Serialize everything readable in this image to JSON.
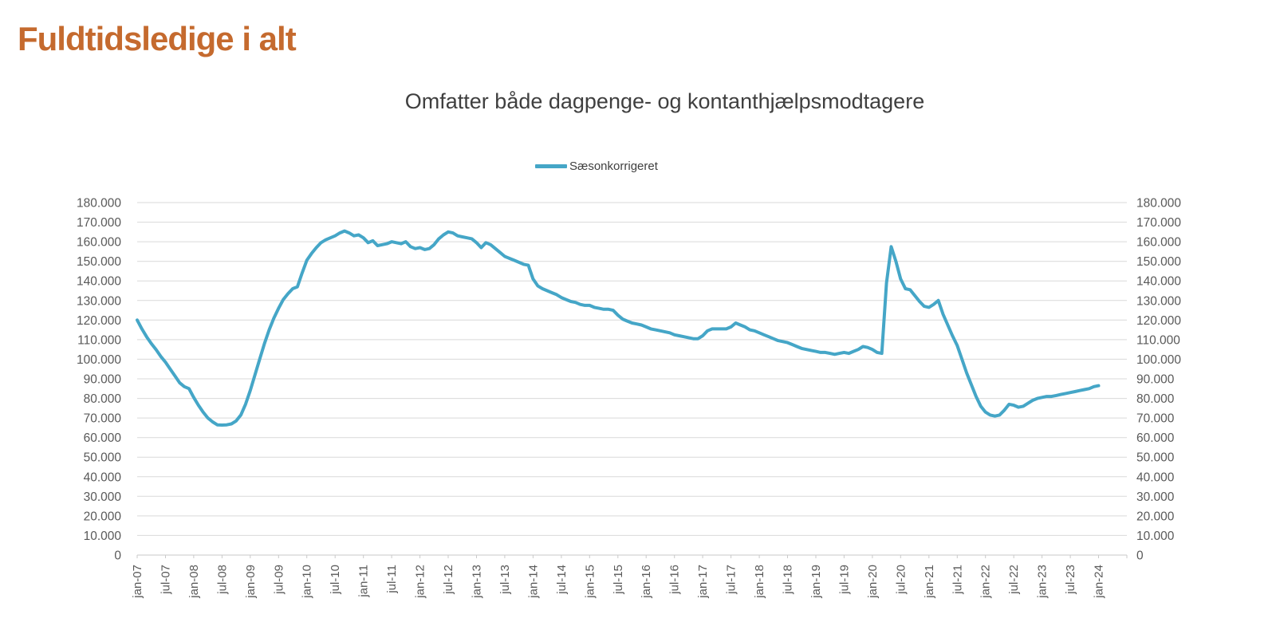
{
  "header": {
    "title": "Fuldtidsledige i alt"
  },
  "chart": {
    "title": "Omfatter både dagpenge- og kontanthjælpsmodtagere",
    "legend": {
      "label": "Sæsonkorrigeret"
    }
  },
  "colors": {
    "accent_orange": "#c56a2e",
    "line_teal": "#45a6c7",
    "gridline": "#d9d9d9",
    "axis_line": "#c9c9c9",
    "axis_text": "#595959",
    "title_text": "#3f3f3f"
  },
  "chart_data": {
    "type": "line",
    "title": "Omfatter både dagpenge- og kontanthjælpsmodtagere",
    "series_name": "Sæsonkorrigeret",
    "legend_position": "top-center",
    "grid": "horizontal",
    "ylim": [
      0,
      180000
    ],
    "ytick_step": 10000,
    "y_tick_labels": [
      "0",
      "10.000",
      "20.000",
      "30.000",
      "40.000",
      "50.000",
      "60.000",
      "70.000",
      "80.000",
      "90.000",
      "100.000",
      "110.000",
      "120.000",
      "130.000",
      "140.000",
      "150.000",
      "160.000",
      "170.000",
      "180.000"
    ],
    "x_start": "jan-07",
    "x_end": "jan-24",
    "months_per_tick": 6,
    "x_axis_total_months": 210,
    "x_tick_labels": [
      "jan-07",
      "jul-07",
      "jan-08",
      "jul-08",
      "jan-09",
      "jul-09",
      "jan-10",
      "jul-10",
      "jan-11",
      "jul-11",
      "jan-12",
      "jul-12",
      "jan-13",
      "jul-13",
      "jan-14",
      "jul-14",
      "jan-15",
      "jul-15",
      "jan-16",
      "jul-16",
      "jan-17",
      "jul-17",
      "jan-18",
      "jul-18",
      "jan-19",
      "jul-19",
      "jan-20",
      "jul-20",
      "jan-21",
      "jul-21",
      "jan-22",
      "jul-22",
      "jan-23",
      "jul-23",
      "jan-24"
    ],
    "values": [
      120000,
      115500,
      111500,
      108000,
      105000,
      101500,
      98500,
      95000,
      91500,
      88000,
      86000,
      85000,
      80500,
      76500,
      73000,
      70000,
      68000,
      66500,
      66400,
      66500,
      67000,
      68500,
      71500,
      77000,
      84000,
      92000,
      100000,
      108000,
      115000,
      121000,
      126000,
      130500,
      133500,
      136000,
      137000,
      144000,
      150500,
      154000,
      157000,
      159500,
      161000,
      162000,
      163000,
      164500,
      165500,
      164500,
      163000,
      163500,
      162000,
      159500,
      160500,
      158000,
      158500,
      159000,
      160000,
      159500,
      159000,
      160000,
      157500,
      156500,
      157000,
      156000,
      156500,
      158500,
      161500,
      163500,
      165000,
      164500,
      163000,
      162500,
      162000,
      161500,
      159500,
      157000,
      159500,
      158500,
      156500,
      154500,
      152500,
      151500,
      150500,
      149500,
      148500,
      148000,
      141000,
      137500,
      136000,
      135000,
      134000,
      133000,
      131500,
      130500,
      129500,
      129000,
      128000,
      127500,
      127500,
      126500,
      126000,
      125500,
      125500,
      125000,
      122500,
      120500,
      119500,
      118500,
      118000,
      117500,
      116500,
      115500,
      115000,
      114500,
      114000,
      113500,
      112500,
      112000,
      111500,
      111000,
      110500,
      110500,
      112000,
      114500,
      115500,
      115500,
      115500,
      115500,
      116500,
      118500,
      117500,
      116500,
      115000,
      114500,
      113500,
      112500,
      111500,
      110500,
      109500,
      109000,
      108500,
      107500,
      106500,
      105500,
      105000,
      104500,
      104000,
      103500,
      103500,
      103000,
      102500,
      103000,
      103500,
      103000,
      104000,
      105000,
      106500,
      106000,
      105000,
      103500,
      103000,
      139000,
      157500,
      150000,
      141000,
      136000,
      135500,
      132500,
      129500,
      127000,
      126500,
      128000,
      130000,
      123000,
      117500,
      112000,
      107000,
      100000,
      93000,
      87000,
      81000,
      76000,
      73000,
      71500,
      71000,
      71500,
      74000,
      77000,
      76500,
      75500,
      76000,
      77500,
      79000,
      80000,
      80500,
      81000,
      81000,
      81500,
      82000,
      82500,
      83000,
      83500,
      84000,
      84500,
      85000,
      86000,
      86500
    ]
  }
}
